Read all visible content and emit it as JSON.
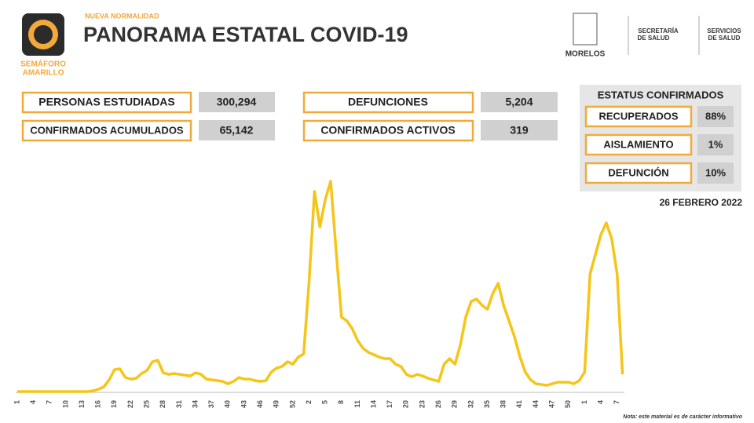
{
  "header": {
    "kicker": "NUEVA NORMALIDAD",
    "title": "PANORAMA ESTATAL COVID-19",
    "semaforo": [
      "SEMÁFORO",
      "AMARILLO"
    ]
  },
  "logos": {
    "state": "MORELOS",
    "secretaria": [
      "SECRETARÍA",
      "DE SALUD"
    ],
    "servicios": [
      "SERVICIOS",
      "DE SALUD"
    ]
  },
  "stats": [
    {
      "label": "PERSONAS ESTUDIADAS",
      "value": "300,294"
    },
    {
      "label": "DEFUNCIONES",
      "value": "5,204"
    },
    {
      "label": "CONFIRMADOS ACUMULADOS",
      "value": "65,142"
    },
    {
      "label": "CONFIRMADOS ACTIVOS",
      "value": "319"
    }
  ],
  "status": {
    "title": "ESTATUS CONFIRMADOS",
    "rows": [
      {
        "label": "RECUPERADOS",
        "value": "88%"
      },
      {
        "label": "AISLAMIENTO",
        "value": "1%"
      },
      {
        "label": "DEFUNCIÓN",
        "value": "10%"
      }
    ]
  },
  "date": "26 FEBRERO 2022",
  "note": "Nota: este material es de carácter informativo",
  "chart_data": {
    "type": "line",
    "color": "#f5c518",
    "ylim": [
      0,
      280
    ],
    "categories": [
      "1",
      null,
      null,
      "4",
      null,
      null,
      "7",
      null,
      null,
      "10",
      null,
      null,
      "13",
      null,
      null,
      "16",
      null,
      null,
      "19",
      null,
      null,
      "22",
      null,
      null,
      "25",
      null,
      null,
      "28",
      null,
      null,
      "31",
      null,
      null,
      "34",
      null,
      null,
      "37",
      null,
      null,
      "40",
      null,
      null,
      "43",
      null,
      null,
      "46",
      null,
      null,
      "49",
      null,
      null,
      "52",
      null,
      null,
      "2",
      null,
      null,
      "5",
      null,
      null,
      "8",
      null,
      null,
      "11",
      null,
      null,
      "14",
      null,
      null,
      "17",
      null,
      null,
      "20",
      null,
      null,
      "23",
      null,
      null,
      "26",
      null,
      null,
      "29",
      null,
      null,
      "32",
      null,
      null,
      "35",
      null,
      null,
      "38",
      null,
      null,
      "41",
      null,
      null,
      "44",
      null,
      null,
      "47",
      null,
      null,
      "50",
      null,
      null,
      "1",
      null,
      null,
      "4",
      null,
      null,
      "7",
      null
    ],
    "values": [
      0,
      0,
      0,
      0,
      0,
      0,
      0,
      0,
      0,
      0,
      0,
      0,
      0,
      0,
      1,
      3,
      6,
      15,
      28,
      29,
      18,
      16,
      17,
      23,
      27,
      38,
      40,
      24,
      22,
      23,
      22,
      21,
      20,
      24,
      22,
      16,
      15,
      14,
      13,
      10,
      13,
      18,
      16,
      16,
      14,
      13,
      14,
      25,
      30,
      32,
      38,
      35,
      44,
      48,
      140,
      255,
      210,
      245,
      268,
      180,
      95,
      90,
      80,
      65,
      55,
      50,
      47,
      44,
      42,
      42,
      35,
      32,
      22,
      19,
      22,
      20,
      17,
      15,
      13,
      35,
      42,
      35,
      60,
      95,
      115,
      118,
      110,
      105,
      125,
      138,
      110,
      90,
      70,
      45,
      25,
      15,
      10,
      9,
      8,
      10,
      12,
      12,
      12,
      10,
      14,
      25,
      150,
      175,
      200,
      215,
      195,
      150,
      22
    ]
  }
}
